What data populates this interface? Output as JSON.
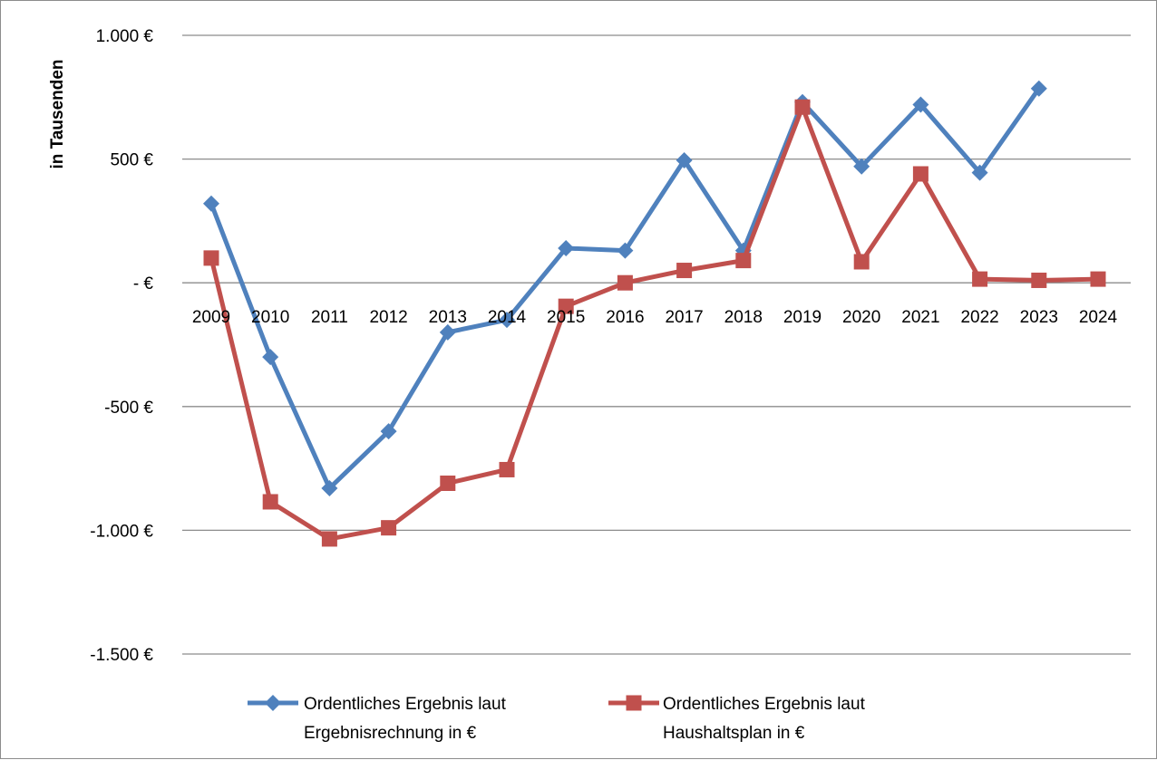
{
  "chart_data": {
    "type": "line",
    "title": "",
    "xlabel": "",
    "ylabel": "in Tausenden",
    "ylim": [
      -1500,
      1000
    ],
    "yticks": [
      1000,
      500,
      0,
      -500,
      -1000,
      -1500
    ],
    "ytick_labels": [
      "1.000 €",
      "500 €",
      "-   €",
      "-500 €",
      "-1.000 €",
      "-1.500 €"
    ],
    "grid": true,
    "legend_position": "bottom",
    "categories": [
      "2009",
      "2010",
      "2011",
      "2012",
      "2013",
      "2014",
      "2015",
      "2016",
      "2017",
      "2018",
      "2019",
      "2020",
      "2021",
      "2022",
      "2023",
      "2024"
    ],
    "series": [
      {
        "name_lines": [
          "Ordentliches Ergebnis laut",
          "Ergebnisrechnung in €"
        ],
        "color": "#4f81bd",
        "marker": "diamond",
        "values": [
          320,
          -300,
          -830,
          -600,
          -200,
          -150,
          140,
          130,
          495,
          130,
          730,
          470,
          720,
          445,
          785,
          null
        ]
      },
      {
        "name_lines": [
          "Ordentliches Ergebnis laut",
          "Haushaltsplan in €"
        ],
        "color": "#c0504d",
        "marker": "square",
        "values": [
          100,
          -885,
          -1035,
          -990,
          -810,
          -755,
          -95,
          0,
          50,
          90,
          710,
          85,
          440,
          15,
          10,
          15
        ]
      }
    ]
  }
}
